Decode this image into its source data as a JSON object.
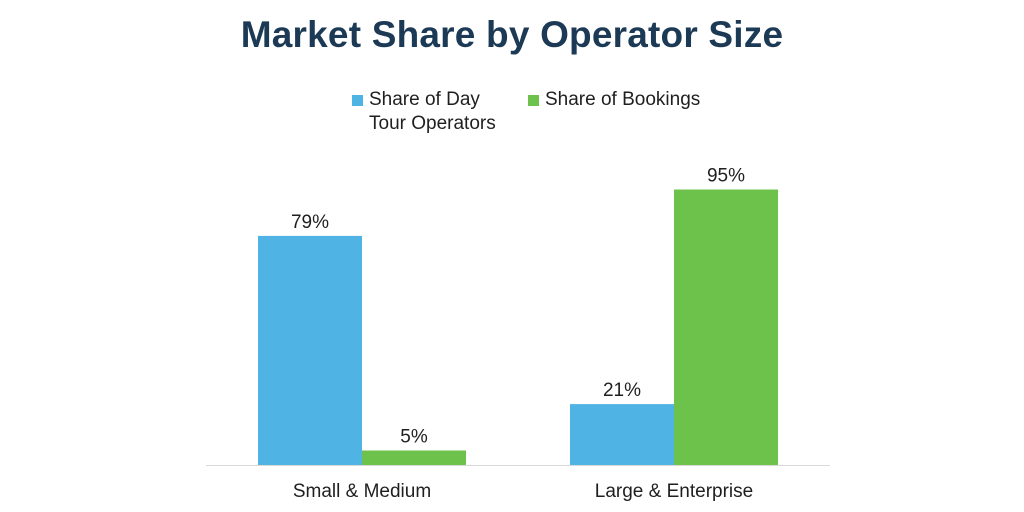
{
  "chart_data": {
    "type": "bar",
    "title": "Market Share by Operator Size",
    "categories": [
      "Small & Medium",
      "Large & Enterprise"
    ],
    "series": [
      {
        "name": "Share of Day Tour Operators",
        "color": "#4fb3e4",
        "values": [
          79,
          21
        ],
        "labels": [
          "79%",
          "21%"
        ]
      },
      {
        "name": "Share of Bookings",
        "color": "#6cc24a",
        "values": [
          5,
          95
        ],
        "labels": [
          "5%",
          "95%"
        ]
      }
    ],
    "ylim": [
      0,
      100
    ],
    "xlabel": "",
    "ylabel": "",
    "grid": false,
    "legend_position": "top"
  }
}
